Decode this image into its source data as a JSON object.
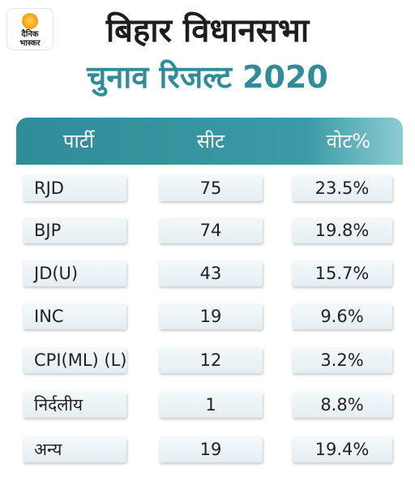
{
  "logo": {
    "line1": "दैनिक",
    "line2": "भास्कर"
  },
  "title": "बिहार विधानसभा",
  "subtitle": "चुनाव रिजल्ट 2020",
  "table": {
    "headers": [
      "पार्टी",
      "सीट",
      "वोट%"
    ],
    "rows": [
      {
        "party": "RJD",
        "seats": "75",
        "vote": "23.5%"
      },
      {
        "party": "BJP",
        "seats": "74",
        "vote": "19.8%"
      },
      {
        "party": "JD(U)",
        "seats": "43",
        "vote": "15.7%"
      },
      {
        "party": "INC",
        "seats": "19",
        "vote": "9.6%"
      },
      {
        "party": "CPI(ML) (L)",
        "seats": "12",
        "vote": "3.2%"
      },
      {
        "party": "निर्दलीय",
        "seats": "1",
        "vote": "8.8%"
      },
      {
        "party": "अन्य",
        "seats": "19",
        "vote": "19.4%"
      }
    ]
  },
  "colors": {
    "accent": "#2f8c98",
    "title": "#1d1d1d",
    "cell_bg": "#e4eef2",
    "logo_sun": "#f7a21b"
  }
}
